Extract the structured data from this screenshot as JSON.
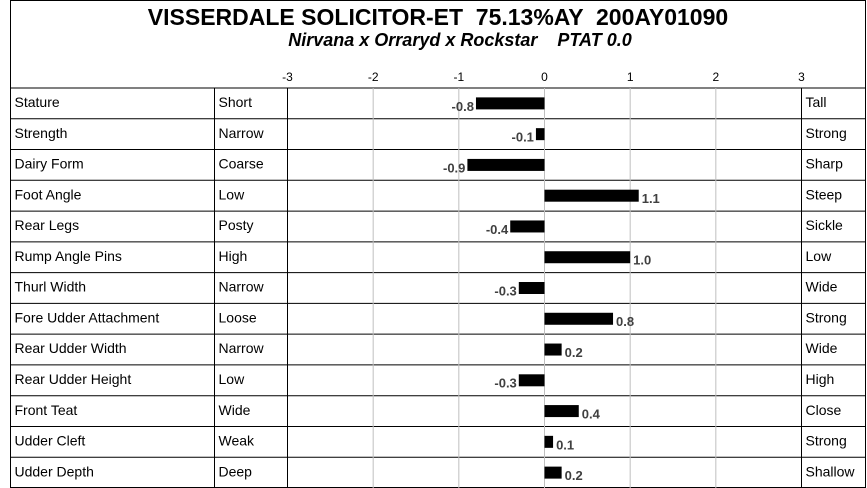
{
  "chart_data": {
    "type": "bar",
    "title": "VISSERDALE SOLICITOR-ET  75.13%AY  200AY01090",
    "subtitle": "Nirvana x Orraryd x Rockstar    PTAT 0.0",
    "categories": [
      "Stature",
      "Strength",
      "Dairy Form",
      "Foot Angle",
      "Rear Legs",
      "Rump Angle Pins",
      "Thurl Width",
      "Fore Udder Attachment",
      "Rear Udder Width",
      "Rear Udder Height",
      "Front Teat",
      "Udder Cleft",
      "Udder Depth"
    ],
    "low_labels": [
      "Short",
      "Narrow",
      "Coarse",
      "Low",
      "Posty",
      "High",
      "Narrow",
      "Loose",
      "Narrow",
      "Low",
      "Wide",
      "Weak",
      "Deep"
    ],
    "high_labels": [
      "Tall",
      "Strong",
      "Sharp",
      "Steep",
      "Sickle",
      "Low",
      "Wide",
      "Strong",
      "Wide",
      "High",
      "Close",
      "Strong",
      "Shallow"
    ],
    "values": [
      -0.8,
      -0.1,
      -0.9,
      1.1,
      -0.4,
      1.0,
      -0.3,
      0.8,
      0.2,
      -0.3,
      0.4,
      0.1,
      0.2
    ],
    "value_labels": [
      "-0.8",
      "-0.1",
      "-0.9",
      "1.1",
      "-0.4",
      "1.0",
      "-0.3",
      "0.8",
      "0.2",
      "-0.3",
      "0.4",
      "0.1",
      "0.2"
    ],
    "color": "#000000",
    "xlim": [
      -3,
      3
    ],
    "xticks": [
      -3,
      -2,
      -1,
      0,
      1,
      2,
      3
    ],
    "grid": true
  }
}
